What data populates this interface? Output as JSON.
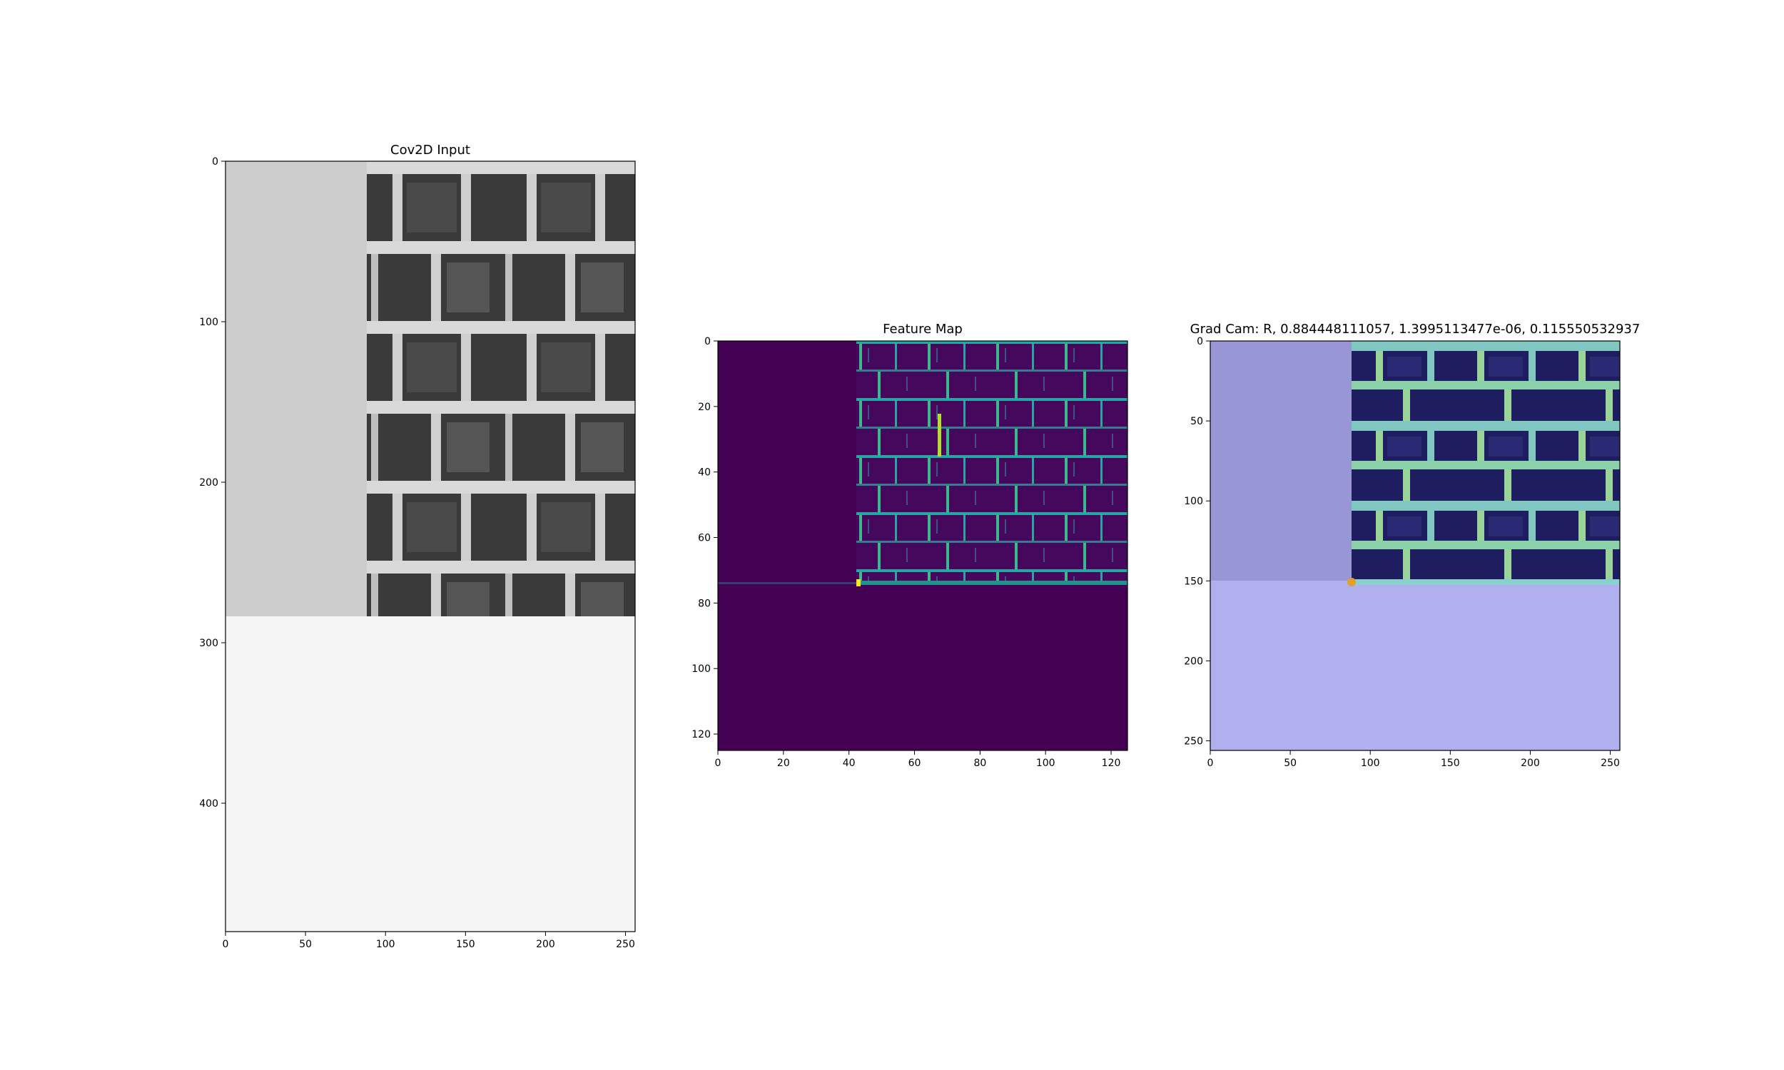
{
  "chart_data": [
    {
      "type": "image",
      "title": "Cov2D Input",
      "xlim": [
        0,
        256
      ],
      "ylim": [
        480,
        0
      ],
      "xticks": [
        "0",
        "50",
        "100",
        "150",
        "200",
        "250"
      ],
      "yticks": [
        "0",
        "100",
        "200",
        "300",
        "400"
      ],
      "image": {
        "padding_left_gray": "#cdcdcd",
        "padding_bottom_gray": "#f5f5f5",
        "texture": "grayscale brick wall",
        "brick_region_x": [
          90,
          256
        ],
        "brick_region_y": [
          0,
          283
        ]
      }
    },
    {
      "type": "heatmap",
      "title": "Feature Map",
      "xlim": [
        0,
        125
      ],
      "ylim": [
        125,
        0
      ],
      "xticks": [
        "0",
        "20",
        "40",
        "60",
        "80",
        "100",
        "120"
      ],
      "yticks": [
        "0",
        "20",
        "40",
        "60",
        "80",
        "100",
        "120"
      ],
      "colormap": "viridis",
      "background_color": "#440154",
      "active_region_x": [
        42,
        125
      ],
      "active_region_y": [
        0,
        75
      ],
      "bright_edge_row": 75
    },
    {
      "type": "image",
      "title": "Grad Cam: R, 0.884448111057, 1.3995113477e-06, 0.115550532937",
      "xlim": [
        0,
        256
      ],
      "ylim": [
        256,
        0
      ],
      "xticks": [
        "0",
        "50",
        "100",
        "150",
        "200",
        "250"
      ],
      "yticks": [
        "0",
        "50",
        "100",
        "150",
        "200",
        "250"
      ],
      "overlay": {
        "left_pad_color": "#9797d5",
        "bottom_pad_color": "#b0b0ef",
        "brick_tint": "#1b1b5a",
        "brick_region_x": [
          88,
          256
        ],
        "brick_region_y": [
          0,
          151
        ]
      }
    }
  ]
}
